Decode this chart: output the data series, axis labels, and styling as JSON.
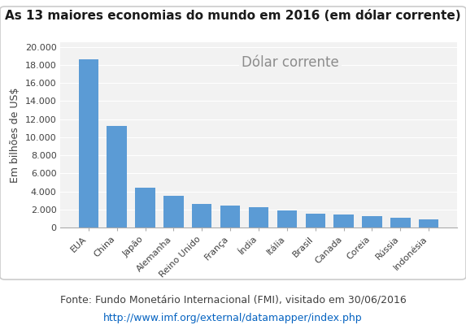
{
  "title": "As 13 maiores economias do mundo em 2016 (em dólar corrente)",
  "ylabel": "Em bilhões de US$",
  "legend_label": "Dólar corrente",
  "categories": [
    "EUA",
    "China",
    "Japão",
    "Alemanha",
    "Reino Unido",
    "França",
    "Índia",
    "Itália",
    "Brasil",
    "Canada",
    "Coreia",
    "Rússia",
    "Indonésia"
  ],
  "values": [
    18600,
    11200,
    4380,
    3470,
    2650,
    2460,
    2250,
    1850,
    1530,
    1460,
    1280,
    1100,
    940
  ],
  "bar_color": "#5B9BD5",
  "yticks": [
    0,
    2000,
    4000,
    6000,
    8000,
    10000,
    12000,
    14000,
    16000,
    18000,
    20000
  ],
  "ytick_labels": [
    "0",
    "2.000",
    "4.000",
    "6.000",
    "8.000",
    "10.000",
    "12.000",
    "14.000",
    "16.000",
    "18.000",
    "20.000"
  ],
  "ylim": [
    0,
    20500
  ],
  "footnote": "Fonte: Fundo Monetário Internacional (FMI), visitado em 30/06/2016",
  "url": "http://www.imf.org/external/datamapper/index.php",
  "background_color": "#FFFFFF",
  "plot_bg_color": "#F2F2F2",
  "title_fontsize": 11,
  "axis_label_fontsize": 9,
  "tick_fontsize": 8,
  "legend_fontsize": 12,
  "footnote_fontsize": 9,
  "url_fontsize": 9,
  "url_color": "#0563C1"
}
